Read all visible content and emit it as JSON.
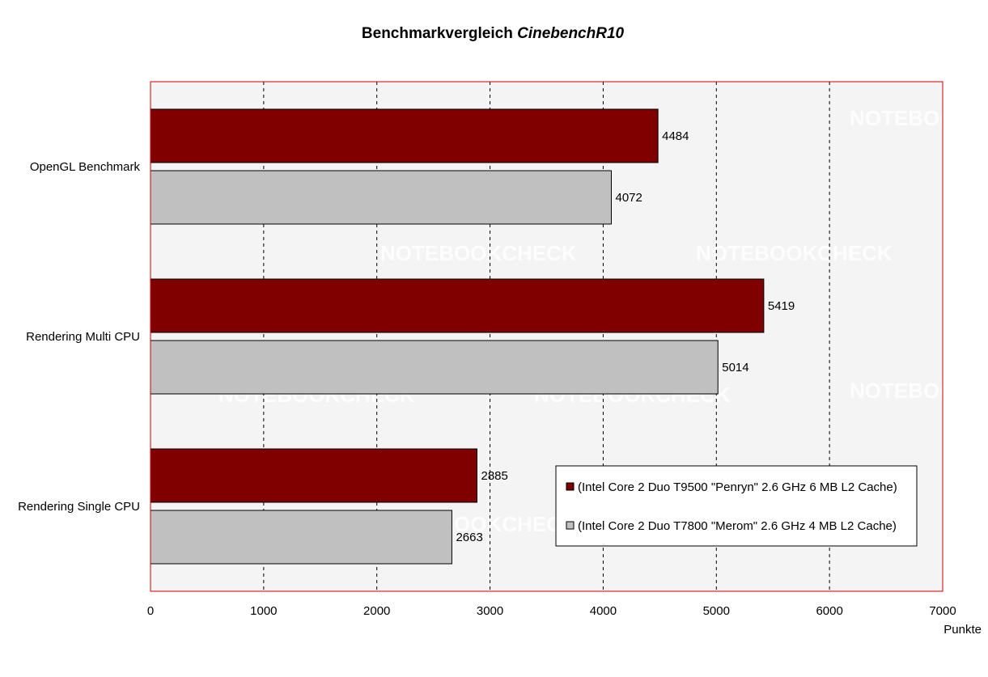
{
  "chart_data": {
    "type": "bar",
    "orientation": "horizontal",
    "title_prefix": "Benchmarkvergleich ",
    "title_italic": "CinebenchR10",
    "categories": [
      "OpenGL Benchmark",
      "Rendering Multi CPU",
      "Rendering Single CPU"
    ],
    "series": [
      {
        "name": "(Intel Core 2 Duo T9500 \"Penryn\" 2.6 GHz 6 MB L2 Cache)",
        "color": "#800000",
        "values": [
          4484,
          5419,
          2885
        ]
      },
      {
        "name": "(Intel Core 2 Duo T7800 \"Merom\" 2.6 GHz 4 MB L2 Cache)",
        "color": "#c0c0c0",
        "values": [
          4072,
          5014,
          2663
        ]
      }
    ],
    "xlim": [
      0,
      7000
    ],
    "xticks": [
      0,
      1000,
      2000,
      3000,
      4000,
      5000,
      6000,
      7000
    ],
    "xlabel": "Punkte",
    "grid": true,
    "legend_position": "bottom-right",
    "plot_background": "#f4f4f4",
    "plot_border": "#cc0000"
  },
  "watermark": "NOTEBOOKCHECK"
}
